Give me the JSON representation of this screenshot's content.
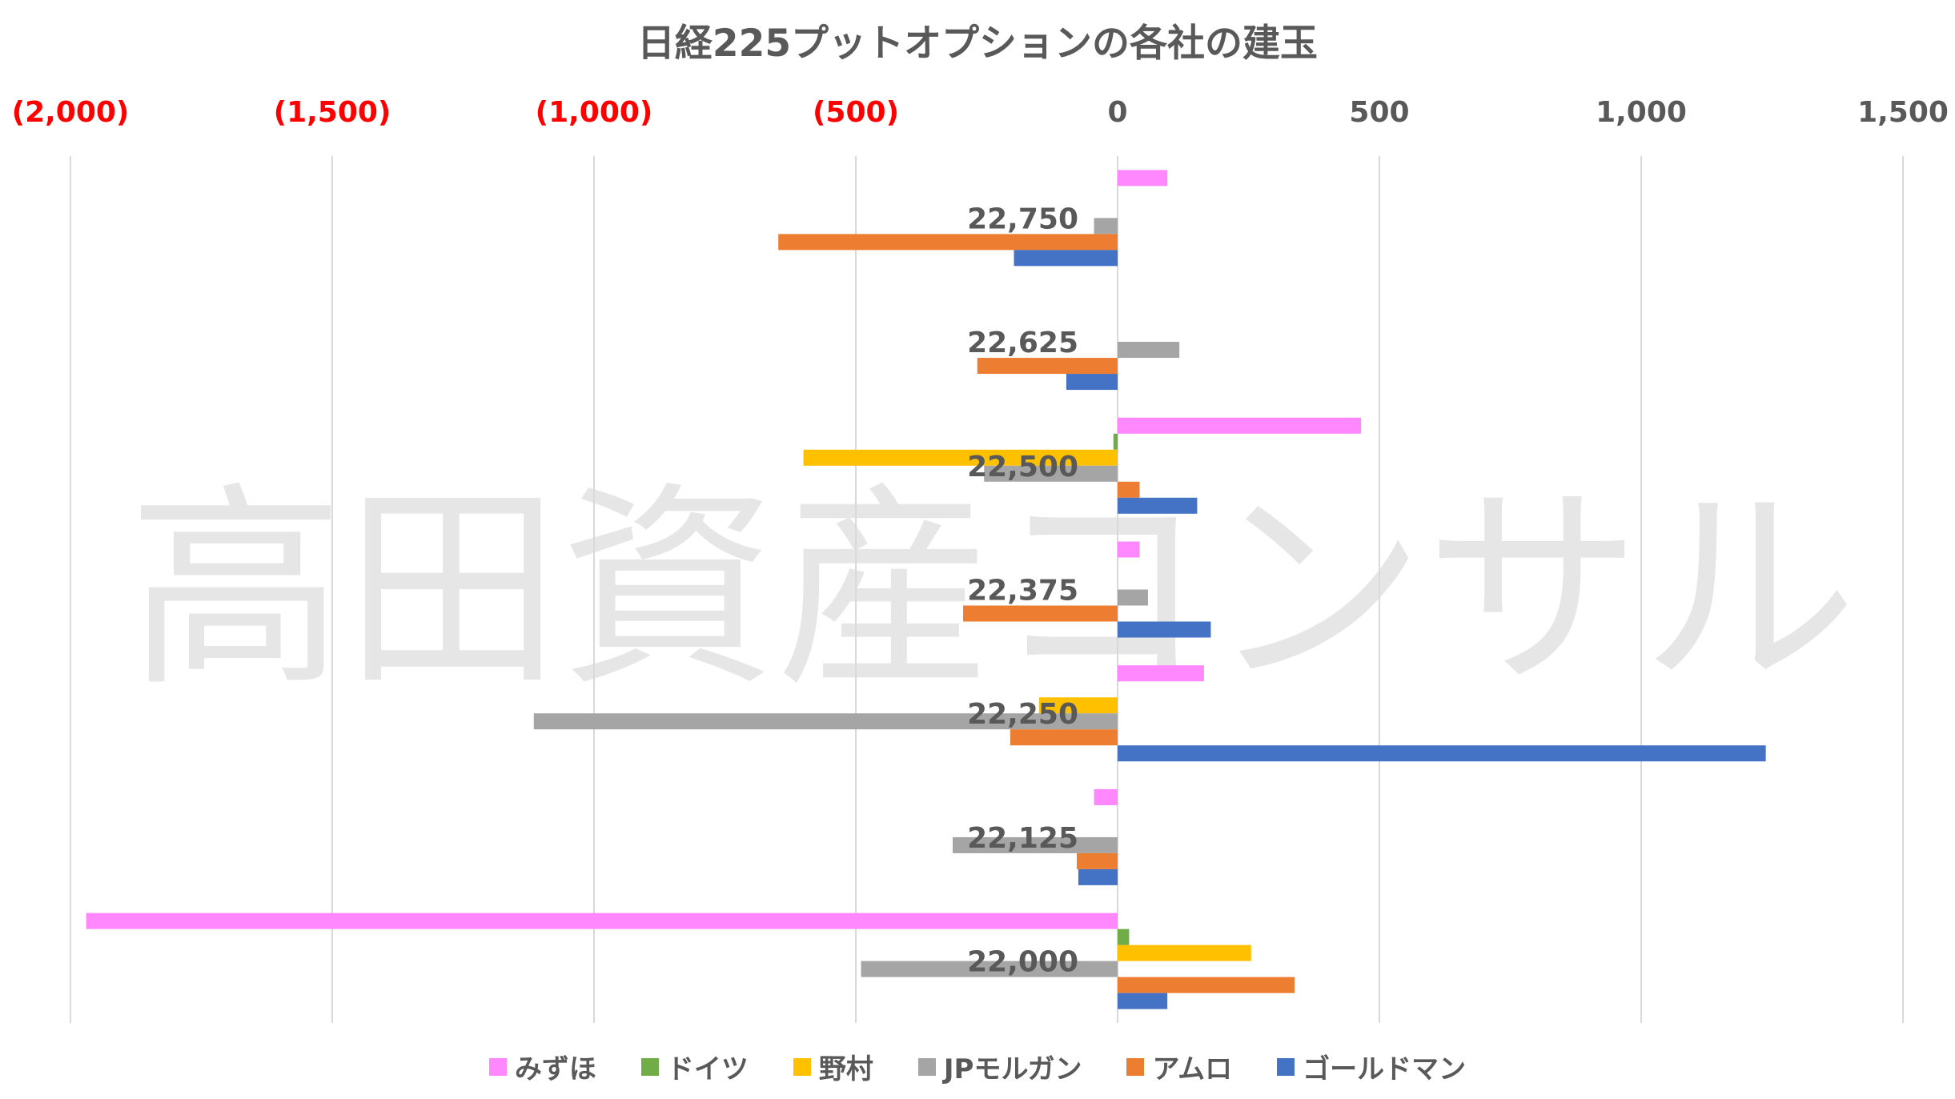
{
  "watermark": "高田資産コンサル",
  "chart_data": {
    "type": "bar",
    "orientation": "horizontal",
    "title": "日経225プットオプションの各社の建玉",
    "xlim": [
      -2000,
      1500
    ],
    "x_ticks": [
      {
        "value": -2000,
        "label": "(2,000)",
        "negative": true
      },
      {
        "value": -1500,
        "label": "(1,500)",
        "negative": true
      },
      {
        "value": -1000,
        "label": "(1,000)",
        "negative": true
      },
      {
        "value": -500,
        "label": "(500)",
        "negative": true
      },
      {
        "value": 0,
        "label": "0",
        "negative": false
      },
      {
        "value": 500,
        "label": "500",
        "negative": false
      },
      {
        "value": 1000,
        "label": "1,000",
        "negative": false
      },
      {
        "value": 1500,
        "label": "1,500",
        "negative": false
      }
    ],
    "categories": [
      "22,750",
      "22,625",
      "22,500",
      "22,375",
      "22,250",
      "22,125",
      "22,000"
    ],
    "grid": true,
    "legend_position": "bottom",
    "series": [
      {
        "name": "みずほ",
        "color": "#ff88ff",
        "values": [
          95,
          0,
          465,
          42,
          165,
          -45,
          -1970
        ]
      },
      {
        "name": "ドイツ",
        "color": "#70ad47",
        "values": [
          0,
          0,
          -8,
          0,
          0,
          0,
          22
        ]
      },
      {
        "name": "野村",
        "color": "#ffc000",
        "values": [
          0,
          0,
          -600,
          0,
          -150,
          0,
          255
        ]
      },
      {
        "name": "JPモルガン",
        "color": "#a5a5a5",
        "values": [
          -45,
          118,
          -255,
          58,
          -1115,
          -315,
          -490
        ]
      },
      {
        "name": "アムロ",
        "color": "#ed7d31",
        "values": [
          -648,
          -268,
          42,
          -295,
          -205,
          -78,
          338
        ]
      },
      {
        "name": "ゴールドマン",
        "color": "#4472c4",
        "values": [
          -198,
          -98,
          152,
          178,
          1238,
          -75,
          95
        ]
      }
    ]
  }
}
